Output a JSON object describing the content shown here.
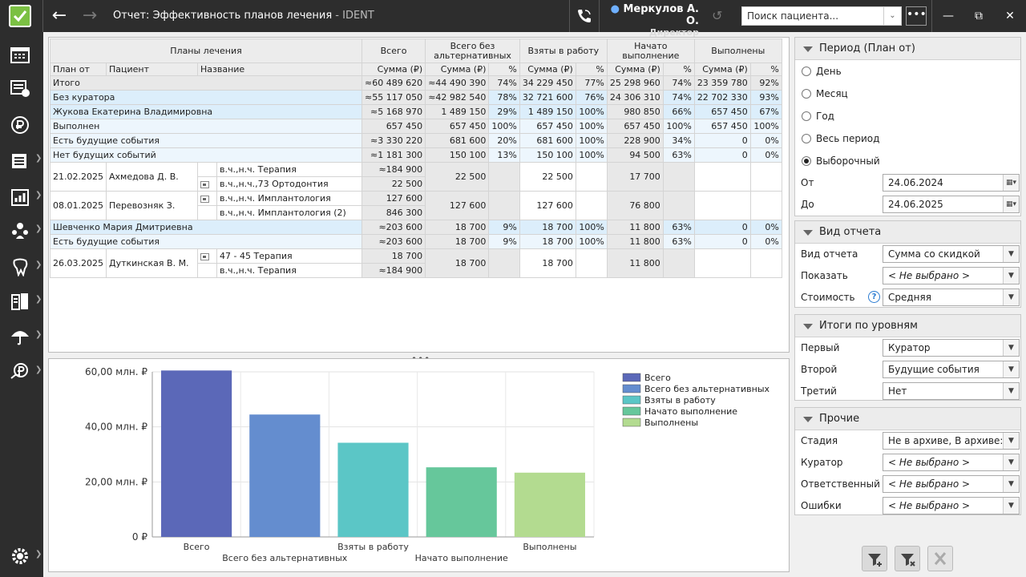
{
  "window": {
    "title": "Отчет: Эффективность планов лечения",
    "app": "IDENT",
    "user_name": "Меркулов А. О.",
    "user_role": "Директор",
    "search_placeholder": "Поиск пациента...",
    "more_label": "•••"
  },
  "table": {
    "group_headers": {
      "plans": "Планы лечения",
      "total": "Всего",
      "total_no_alt": "Всего без альтернативных",
      "taken": "Взяты в работу",
      "started": "Начато выполнение",
      "done": "Выполнены"
    },
    "sub_headers": {
      "plan_from": "План от",
      "patient": "Пациент",
      "name": "Название",
      "sum": "Сумма (₽)",
      "pct": "%"
    },
    "summary_rows": [
      {
        "label": "Итого",
        "style": "gr",
        "total": "≈60 489 620",
        "noalt": "≈44 490 390",
        "noalt_pct": "74%",
        "taken": "34 229 450",
        "taken_pct": "77%",
        "started": "25 298 960",
        "started_pct": "74%",
        "done": "23 359 780",
        "done_pct": "92%"
      },
      {
        "label": "Без куратора",
        "style": "bl",
        "total": "≈55 117 050",
        "noalt": "≈42 982 540",
        "noalt_pct": "78%",
        "taken": "32 721 600",
        "taken_pct": "76%",
        "started": "24 306 310",
        "started_pct": "74%",
        "done": "22 702 330",
        "done_pct": "93%"
      },
      {
        "label": "Жукова Екатерина Владимировна",
        "style": "bl",
        "total": "≈5 168 970",
        "noalt": "1 489 150",
        "noalt_pct": "29%",
        "taken": "1 489 150",
        "taken_pct": "100%",
        "started": "980 850",
        "started_pct": "66%",
        "done": "657 450",
        "done_pct": "67%"
      },
      {
        "label": "Выполнен",
        "style": "bl2",
        "total": "657 450",
        "noalt": "657 450",
        "noalt_pct": "100%",
        "taken": "657 450",
        "taken_pct": "100%",
        "started": "657 450",
        "started_pct": "100%",
        "done": "657 450",
        "done_pct": "100%"
      },
      {
        "label": "Есть будущие события",
        "style": "bl2",
        "total": "≈3 330 220",
        "noalt": "681 600",
        "noalt_pct": "20%",
        "taken": "681 600",
        "taken_pct": "100%",
        "started": "228 900",
        "started_pct": "34%",
        "done": "0",
        "done_pct": "0%"
      },
      {
        "label": "Нет будущих событий",
        "style": "bl2",
        "total": "≈1 181 300",
        "noalt": "150 100",
        "noalt_pct": "13%",
        "taken": "150 100",
        "taken_pct": "100%",
        "started": "94 500",
        "started_pct": "63%",
        "done": "0",
        "done_pct": "0%"
      }
    ],
    "patient_blocks_a": [
      {
        "date": "21.02.2025",
        "patient": "Ахмедова Д. В.",
        "noalt": "22 500",
        "taken": "22 500",
        "started": "17 700",
        "plans": [
          {
            "name": "в.ч.,н.ч. Терапия",
            "checkbox": false,
            "total": "≈184 900"
          },
          {
            "name": "в.ч.,н.ч.,73 Ортодонтия",
            "checkbox": true,
            "total": "22 500"
          }
        ]
      },
      {
        "date": "08.01.2025",
        "patient": "Перевозняк З.",
        "noalt": "127 600",
        "taken": "127 600",
        "started": "76 800",
        "plans": [
          {
            "name": "в.ч.,н.ч. Имплантология",
            "checkbox": true,
            "total": "127 600"
          },
          {
            "name": "в.ч.,н.ч. Имплантология (2)",
            "checkbox": false,
            "total": "846 300"
          }
        ]
      }
    ],
    "summary_rows_b": [
      {
        "label": "Шевченко Мария Дмитриевна",
        "style": "bl",
        "total": "≈203 600",
        "noalt": "18 700",
        "noalt_pct": "9%",
        "taken": "18 700",
        "taken_pct": "100%",
        "started": "11 800",
        "started_pct": "63%",
        "done": "0",
        "done_pct": "0%"
      },
      {
        "label": "Есть будущие события",
        "style": "bl2",
        "total": "≈203 600",
        "noalt": "18 700",
        "noalt_pct": "9%",
        "taken": "18 700",
        "taken_pct": "100%",
        "started": "11 800",
        "started_pct": "63%",
        "done": "0",
        "done_pct": "0%"
      }
    ],
    "patient_blocks_b": [
      {
        "date": "26.03.2025",
        "patient": "Дуткинская В. М.",
        "noalt": "18 700",
        "taken": "18 700",
        "started": "11 800",
        "plans": [
          {
            "name": "47 - 45 Терапия",
            "checkbox": true,
            "total": "18 700"
          },
          {
            "name": "в.ч.,н.ч. Терапия",
            "checkbox": false,
            "total": "≈184 900"
          }
        ]
      }
    ]
  },
  "splitter_label": "•••",
  "chart_data": {
    "type": "bar",
    "categories": [
      "Всего",
      "Всего без альтернативных",
      "Взяты в работу",
      "Начато выполнение",
      "Выполнены"
    ],
    "values": [
      60.49,
      44.49,
      34.23,
      25.3,
      23.36
    ],
    "colors": [
      "#5b68b8",
      "#648dcf",
      "#5bc6c6",
      "#66c79b",
      "#b3db90"
    ],
    "ylim": [
      0,
      60
    ],
    "yticks": [
      0,
      20,
      40,
      60
    ],
    "ytick_labels": [
      "0 ₽",
      "20,00 млн. ₽",
      "40,00 млн. ₽",
      "60,00 млн. ₽"
    ],
    "legend_position": "top-right",
    "grid": true
  },
  "panels": {
    "period": {
      "title": "Период (План от)",
      "options": [
        {
          "label": "День",
          "selected": false
        },
        {
          "label": "Месяц",
          "selected": false
        },
        {
          "label": "Год",
          "selected": false
        },
        {
          "label": "Весь период",
          "selected": false
        },
        {
          "label": "Выборочный",
          "selected": true
        }
      ],
      "from_label": "От",
      "from_value": "24.06.2024",
      "to_label": "До",
      "to_value": "24.06.2025"
    },
    "view": {
      "title": "Вид отчета",
      "fields": [
        {
          "label": "Вид отчета",
          "value": "Сумма со скидкой",
          "italic": false
        },
        {
          "label": "Показать",
          "value": "< Не выбрано >",
          "italic": true
        },
        {
          "label": "Стоимость",
          "value": "Средняя",
          "italic": false
        }
      ],
      "help": "?"
    },
    "levels": {
      "title": "Итоги по уровням",
      "fields": [
        {
          "label": "Первый",
          "value": "Куратор",
          "italic": false
        },
        {
          "label": "Второй",
          "value": "Будущие события",
          "italic": false
        },
        {
          "label": "Третий",
          "value": "Нет",
          "italic": false
        }
      ]
    },
    "other": {
      "title": "Прочие",
      "fields": [
        {
          "label": "Стадия",
          "value": "Не в архиве, В архиве:...",
          "italic": false
        },
        {
          "label": "Куратор",
          "value": "< Не выбрано >",
          "italic": true
        },
        {
          "label": "Ответственный",
          "value": "< Не выбрано >",
          "italic": true
        },
        {
          "label": "Ошибки",
          "value": "< Не выбрано >",
          "italic": true
        }
      ]
    }
  },
  "colors": {
    "accent": "#7bc043",
    "chrome": "#2d2d2d",
    "row_blue": "#dceefb",
    "row_light": "#edf6fd",
    "row_gray": "#e8e8e8"
  },
  "icons": {
    "sidebar": [
      "schedule-icon",
      "patients-card-icon",
      "ruble-icon",
      "calendar-icon",
      "reports-chart-icon",
      "staff-icon",
      "tooth-icon",
      "documents-icon",
      "insurance-umbrella-icon",
      "payments-icon"
    ],
    "bottom": "settings-gear-icon"
  }
}
